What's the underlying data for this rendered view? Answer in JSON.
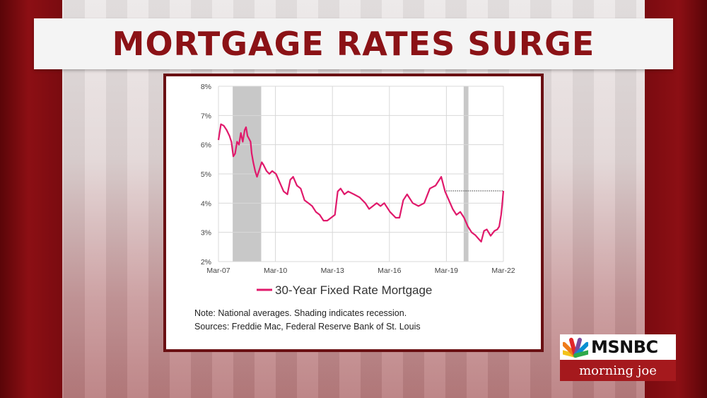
{
  "headline": "MORTGAGE RATES SURGE",
  "network": {
    "name": "MSNBC",
    "show": "morning joe",
    "peacock_colors": [
      "#f3c31b",
      "#ef7b1a",
      "#e1272b",
      "#7a4a9e",
      "#0a8fd1",
      "#2eaa4a"
    ]
  },
  "colors": {
    "series": "#e0196b",
    "recession": "#c8c8c8",
    "headline": "#8b1216",
    "frame": "#6a1013"
  },
  "chart_data": {
    "type": "line",
    "ylim": [
      2,
      8
    ],
    "xlim": [
      2007.17,
      2022.17
    ],
    "yticks": [
      {
        "value": 2,
        "label": "2%"
      },
      {
        "value": 3,
        "label": "3%"
      },
      {
        "value": 4,
        "label": "4%"
      },
      {
        "value": 5,
        "label": "5%"
      },
      {
        "value": 6,
        "label": "6%"
      },
      {
        "value": 7,
        "label": "7%"
      },
      {
        "value": 8,
        "label": "8%"
      }
    ],
    "xticks": [
      {
        "value": 2007.17,
        "label": "Mar-07"
      },
      {
        "value": 2010.17,
        "label": "Mar-10"
      },
      {
        "value": 2013.17,
        "label": "Mar-13"
      },
      {
        "value": 2016.17,
        "label": "Mar-16"
      },
      {
        "value": 2019.17,
        "label": "Mar-19"
      },
      {
        "value": 2022.17,
        "label": "Mar-22"
      }
    ],
    "grid": true,
    "recessions": [
      {
        "start": 2007.92,
        "end": 2009.42
      },
      {
        "start": 2020.08,
        "end": 2020.33
      }
    ],
    "reference_line": {
      "y": 4.42,
      "x_start": 2019.17,
      "x_end": 2022.17,
      "style": "dotted"
    },
    "series": [
      {
        "name": "30-Year Fixed Rate Mortgage",
        "x": [
          2007.17,
          2007.3,
          2007.45,
          2007.6,
          2007.75,
          2007.85,
          2007.95,
          2008.05,
          2008.15,
          2008.25,
          2008.35,
          2008.45,
          2008.55,
          2008.62,
          2008.7,
          2008.78,
          2008.86,
          2008.92,
          2009.0,
          2009.1,
          2009.2,
          2009.35,
          2009.45,
          2009.55,
          2009.7,
          2009.85,
          2010.0,
          2010.2,
          2010.4,
          2010.6,
          2010.8,
          2010.95,
          2011.1,
          2011.3,
          2011.5,
          2011.7,
          2011.9,
          2012.1,
          2012.3,
          2012.5,
          2012.7,
          2012.9,
          2013.1,
          2013.3,
          2013.45,
          2013.6,
          2013.8,
          2014.0,
          2014.3,
          2014.6,
          2014.9,
          2015.1,
          2015.3,
          2015.5,
          2015.7,
          2015.9,
          2016.2,
          2016.5,
          2016.7,
          2016.9,
          2017.1,
          2017.4,
          2017.7,
          2018.0,
          2018.3,
          2018.6,
          2018.9,
          2019.1,
          2019.3,
          2019.5,
          2019.7,
          2019.9,
          2020.1,
          2020.3,
          2020.5,
          2020.7,
          2020.9,
          2021.0,
          2021.15,
          2021.3,
          2021.5,
          2021.7,
          2021.85,
          2021.95,
          2022.05,
          2022.1,
          2022.17
        ],
        "values": [
          6.16,
          6.7,
          6.65,
          6.5,
          6.3,
          6.1,
          5.6,
          5.7,
          6.1,
          6.0,
          6.4,
          6.1,
          6.5,
          6.6,
          6.3,
          6.2,
          6.1,
          5.7,
          5.4,
          5.1,
          4.9,
          5.2,
          5.4,
          5.3,
          5.1,
          5.0,
          5.1,
          5.0,
          4.7,
          4.4,
          4.3,
          4.8,
          4.9,
          4.6,
          4.5,
          4.1,
          4.0,
          3.9,
          3.7,
          3.6,
          3.4,
          3.4,
          3.5,
          3.6,
          4.4,
          4.5,
          4.3,
          4.4,
          4.3,
          4.2,
          4.0,
          3.8,
          3.9,
          4.0,
          3.9,
          4.0,
          3.7,
          3.5,
          3.5,
          4.1,
          4.3,
          4.0,
          3.9,
          4.0,
          4.5,
          4.6,
          4.9,
          4.4,
          4.1,
          3.8,
          3.6,
          3.7,
          3.5,
          3.2,
          3.0,
          2.9,
          2.75,
          2.68,
          3.05,
          3.1,
          2.88,
          3.05,
          3.1,
          3.2,
          3.6,
          3.9,
          4.42
        ]
      }
    ],
    "legend": {
      "placement": "bottom-center",
      "label": "30-Year Fixed Rate Mortgage"
    },
    "notes": [
      "Note: National averages. Shading indicates recession.",
      "Sources: Freddie Mac, Federal Reserve Bank of St. Louis"
    ]
  }
}
